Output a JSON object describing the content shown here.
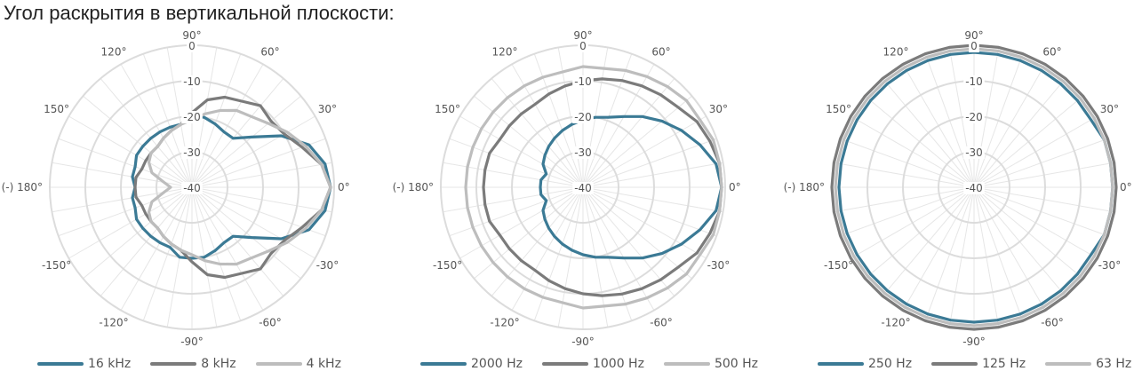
{
  "title": "Угол раскрытия в вертикальной плоскости:",
  "colors": {
    "blue": "#3b7a95",
    "dark_gray": "#7b7b7b",
    "light_gray": "#bdbdbd",
    "grid": "#dcdcdc",
    "spoke": "#e6e6e6"
  },
  "chart_data": [
    {
      "type": "polar-line",
      "radial_ticks": [
        "0",
        "-10",
        "-20",
        "-30",
        "-40"
      ],
      "radial_range": [
        -40,
        0
      ],
      "angle_ticks": [
        "0°",
        "30°",
        "60°",
        "90°",
        "120°",
        "150°",
        "(-) 180°",
        "-150°",
        "-120°",
        "-90°",
        "-60°",
        "-30°"
      ],
      "grid": true,
      "legend_position": "bottom",
      "series": [
        {
          "name": "16 kHz",
          "color": "#3b7a95",
          "angles": [
            0,
            10,
            20,
            30,
            40,
            50,
            60,
            70,
            80,
            90,
            100,
            110,
            120,
            130,
            140,
            150,
            160,
            170,
            180,
            190,
            200,
            210,
            220,
            230,
            240,
            250,
            260,
            270,
            280,
            290,
            300,
            310,
            320,
            330,
            340,
            350
          ],
          "values": [
            -1,
            -2,
            -5,
            -11,
            -18,
            -22,
            -22,
            -21,
            -20,
            -20,
            -22,
            -22,
            -22,
            -22,
            -22,
            -22,
            -23,
            -23,
            -24,
            -23,
            -23,
            -22,
            -22,
            -22,
            -22,
            -22,
            -20,
            -20,
            -20,
            -21,
            -22,
            -22,
            -18,
            -11,
            -5,
            -2
          ]
        },
        {
          "name": "8 kHz",
          "color": "#7b7b7b",
          "angles": [
            0,
            10,
            20,
            30,
            40,
            50,
            60,
            70,
            80,
            90,
            100,
            110,
            120,
            130,
            140,
            150,
            160,
            170,
            180,
            190,
            200,
            210,
            220,
            230,
            240,
            250,
            260,
            270,
            280,
            290,
            300,
            310,
            320,
            330,
            340,
            350
          ],
          "values": [
            -1,
            -3,
            -7,
            -10,
            -11,
            -10,
            -12,
            -13,
            -15,
            -19,
            -22,
            -23,
            -24,
            -25,
            -25,
            -25,
            -25,
            -24,
            -24,
            -24,
            -25,
            -25,
            -25,
            -25,
            -24,
            -23,
            -22,
            -19,
            -15,
            -13,
            -12,
            -10,
            -11,
            -10,
            -7,
            -3
          ]
        },
        {
          "name": "4 kHz",
          "color": "#bdbdbd",
          "angles": [
            0,
            10,
            20,
            30,
            40,
            50,
            60,
            70,
            80,
            90,
            100,
            110,
            120,
            130,
            140,
            150,
            160,
            170,
            180,
            190,
            200,
            210,
            220,
            230,
            240,
            250,
            260,
            270,
            280,
            290,
            300,
            310,
            320,
            330,
            340,
            350
          ],
          "values": [
            -1,
            -3,
            -6,
            -9,
            -12,
            -14,
            -15,
            -17,
            -19,
            -21,
            -22,
            -23,
            -24,
            -25,
            -25,
            -26,
            -28,
            -32,
            -34,
            -32,
            -28,
            -26,
            -25,
            -25,
            -24,
            -23,
            -22,
            -21,
            -19,
            -17,
            -15,
            -14,
            -12,
            -9,
            -6,
            -3
          ]
        }
      ]
    },
    {
      "type": "polar-line",
      "radial_ticks": [
        "0",
        "-10",
        "-20",
        "-30",
        "-40"
      ],
      "radial_range": [
        -40,
        0
      ],
      "angle_ticks": [
        "0°",
        "30°",
        "60°",
        "90°",
        "120°",
        "150°",
        "(-) 180°",
        "-150°",
        "-120°",
        "-90°",
        "-60°",
        "-30°"
      ],
      "grid": true,
      "legend_position": "bottom",
      "series": [
        {
          "name": "2000 Hz",
          "color": "#3b7a95",
          "angles": [
            0,
            10,
            20,
            30,
            40,
            50,
            60,
            70,
            80,
            90,
            100,
            110,
            120,
            130,
            140,
            150,
            160,
            170,
            180,
            190,
            200,
            210,
            220,
            230,
            240,
            250,
            260,
            270,
            280,
            290,
            300,
            310,
            320,
            330,
            340,
            350
          ],
          "values": [
            -1,
            -2,
            -5,
            -8,
            -11,
            -14,
            -17,
            -19,
            -20,
            -21,
            -22,
            -23,
            -24,
            -25,
            -26,
            -27,
            -29,
            -28,
            -28,
            -28,
            -29,
            -27,
            -26,
            -25,
            -24,
            -23,
            -22,
            -21,
            -20,
            -19,
            -17,
            -14,
            -11,
            -8,
            -5,
            -2
          ]
        },
        {
          "name": "1000 Hz",
          "color": "#7b7b7b",
          "angles": [
            0,
            10,
            20,
            30,
            40,
            50,
            60,
            70,
            80,
            90,
            100,
            110,
            120,
            130,
            140,
            150,
            160,
            170,
            180,
            190,
            200,
            210,
            220,
            230,
            240,
            250,
            260,
            270,
            280,
            290,
            300,
            310,
            320,
            330,
            340,
            350
          ],
          "values": [
            -1,
            -1,
            -2,
            -3,
            -5,
            -6,
            -7,
            -8,
            -9,
            -10,
            -11,
            -12,
            -13,
            -13,
            -13,
            -13,
            -12,
            -12,
            -12,
            -12,
            -12,
            -13,
            -13,
            -13,
            -13,
            -12,
            -11,
            -10,
            -9,
            -8,
            -7,
            -6,
            -5,
            -3,
            -2,
            -1
          ]
        },
        {
          "name": "500 Hz",
          "color": "#bdbdbd",
          "angles": [
            0,
            10,
            20,
            30,
            40,
            50,
            60,
            70,
            80,
            90,
            100,
            110,
            120,
            130,
            140,
            150,
            160,
            170,
            180,
            190,
            200,
            210,
            220,
            230,
            240,
            250,
            260,
            270,
            280,
            290,
            300,
            310,
            320,
            330,
            340,
            350
          ],
          "values": [
            -1,
            -1,
            -1,
            -2,
            -2,
            -3,
            -4,
            -5,
            -6,
            -6,
            -7,
            -7,
            -7,
            -7,
            -7,
            -7,
            -7,
            -7,
            -7,
            -7,
            -7,
            -7,
            -7,
            -7,
            -7,
            -7,
            -7,
            -6,
            -6,
            -5,
            -4,
            -3,
            -2,
            -2,
            -1,
            -1
          ]
        }
      ]
    },
    {
      "type": "polar-line",
      "radial_ticks": [
        "0",
        "-10",
        "-20",
        "-30",
        "-40"
      ],
      "radial_range": [
        -40,
        0
      ],
      "angle_ticks": [
        "0°",
        "30°",
        "60°",
        "90°",
        "120°",
        "150°",
        "(-) 180°",
        "-150°",
        "-120°",
        "-90°",
        "-60°",
        "-30°"
      ],
      "grid": true,
      "legend_position": "bottom",
      "series": [
        {
          "name": "250 Hz",
          "color": "#3b7a95",
          "angles": [
            0,
            10,
            20,
            30,
            40,
            50,
            60,
            70,
            80,
            90,
            100,
            110,
            120,
            130,
            140,
            150,
            160,
            170,
            180,
            190,
            200,
            210,
            220,
            230,
            240,
            250,
            260,
            270,
            280,
            290,
            300,
            310,
            320,
            330,
            340,
            350
          ],
          "values": [
            -1,
            -1,
            -1,
            -2,
            -2,
            -2,
            -2,
            -2,
            -2,
            -2,
            -2,
            -2,
            -2,
            -2,
            -2,
            -2,
            -2,
            -2,
            -2,
            -2,
            -2,
            -2,
            -2,
            -2,
            -2,
            -2,
            -2,
            -2,
            -2,
            -2,
            -2,
            -2,
            -2,
            -2,
            -1,
            -1
          ]
        },
        {
          "name": "125 Hz",
          "color": "#7b7b7b",
          "angles": [
            0,
            10,
            20,
            30,
            40,
            50,
            60,
            70,
            80,
            90,
            100,
            110,
            120,
            130,
            140,
            150,
            160,
            170,
            180,
            190,
            200,
            210,
            220,
            230,
            240,
            250,
            260,
            270,
            280,
            290,
            300,
            310,
            320,
            330,
            340,
            350
          ],
          "values": [
            0,
            0,
            0,
            0,
            0,
            0,
            0,
            0,
            0,
            0,
            0,
            0,
            0,
            0,
            0,
            0,
            0,
            0,
            0,
            0,
            0,
            0,
            0,
            0,
            0,
            0,
            0,
            0,
            0,
            0,
            0,
            0,
            0,
            0,
            0,
            0
          ]
        },
        {
          "name": "63 Hz",
          "color": "#bdbdbd",
          "angles": [
            0,
            10,
            20,
            30,
            40,
            50,
            60,
            70,
            80,
            90,
            100,
            110,
            120,
            130,
            140,
            150,
            160,
            170,
            180,
            190,
            200,
            210,
            220,
            230,
            240,
            250,
            260,
            270,
            280,
            290,
            300,
            310,
            320,
            330,
            340,
            350
          ],
          "values": [
            -1,
            -1,
            -1,
            -1,
            -1,
            -1,
            -1,
            -1,
            -1,
            -1,
            -1,
            -1,
            -1,
            -1,
            -1,
            -1,
            -1,
            -1,
            -1,
            -1,
            -1,
            -1,
            -1,
            -1,
            -1,
            -1,
            -1,
            -1,
            -1,
            -1,
            -1,
            -1,
            -1,
            -1,
            -1,
            -1
          ]
        }
      ]
    }
  ]
}
